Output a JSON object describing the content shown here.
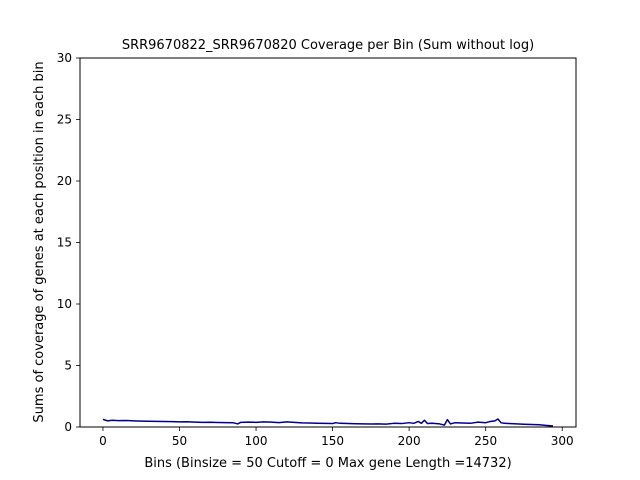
{
  "chart_data": {
    "type": "line",
    "title": "SRR9670822_SRR9670820 Coverage per Bin (Sum without log)",
    "xlabel": "Bins  (Binsize = 50 Cutoff = 0 Max gene Length =14732)",
    "ylabel": "Sums of coverage of genes at each position in each bin",
    "xlim": [
      -15,
      309
    ],
    "ylim": [
      0,
      30
    ],
    "xticks": [
      0,
      50,
      100,
      150,
      200,
      250,
      300
    ],
    "yticks": [
      0,
      5,
      10,
      15,
      20,
      25,
      30
    ],
    "grid": false,
    "line_color": "#00008b",
    "series": [
      {
        "name": "",
        "x": [
          0,
          3,
          6,
          10,
          15,
          20,
          25,
          30,
          35,
          40,
          45,
          50,
          55,
          60,
          65,
          70,
          75,
          80,
          85,
          88,
          90,
          95,
          100,
          105,
          110,
          115,
          120,
          125,
          130,
          135,
          140,
          145,
          150,
          152,
          155,
          160,
          165,
          170,
          175,
          180,
          185,
          190,
          195,
          200,
          203,
          206,
          208,
          210,
          212,
          215,
          220,
          223,
          225,
          227,
          230,
          235,
          240,
          245,
          250,
          253,
          256,
          258,
          260,
          262,
          265,
          270,
          275,
          280,
          285,
          290,
          294
        ],
        "y": [
          0.62,
          0.5,
          0.55,
          0.52,
          0.53,
          0.5,
          0.48,
          0.47,
          0.46,
          0.45,
          0.44,
          0.42,
          0.43,
          0.4,
          0.38,
          0.39,
          0.37,
          0.36,
          0.35,
          0.25,
          0.38,
          0.4,
          0.38,
          0.42,
          0.4,
          0.36,
          0.42,
          0.38,
          0.34,
          0.32,
          0.3,
          0.29,
          0.28,
          0.35,
          0.3,
          0.28,
          0.26,
          0.25,
          0.24,
          0.25,
          0.23,
          0.3,
          0.28,
          0.35,
          0.3,
          0.45,
          0.3,
          0.55,
          0.28,
          0.3,
          0.25,
          0.15,
          0.6,
          0.25,
          0.35,
          0.32,
          0.3,
          0.4,
          0.35,
          0.45,
          0.5,
          0.65,
          0.35,
          0.3,
          0.28,
          0.25,
          0.22,
          0.2,
          0.18,
          0.12,
          0.08
        ]
      }
    ]
  }
}
